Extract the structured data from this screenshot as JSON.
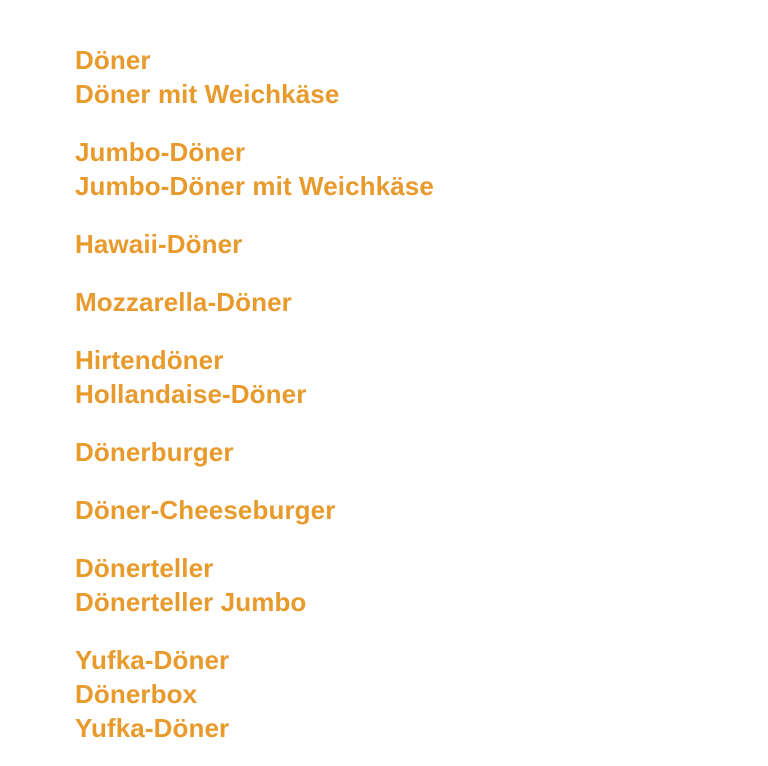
{
  "accent_color": "#e89a2c",
  "menu": {
    "groups": [
      {
        "items": [
          "Döner",
          "Döner mit Weichkäse"
        ]
      },
      {
        "items": [
          "Jumbo-Döner",
          "Jumbo-Döner mit Weichkäse"
        ]
      },
      {
        "items": [
          "Hawaii-Döner"
        ]
      },
      {
        "items": [
          "Mozzarella-Döner"
        ]
      },
      {
        "items": [
          "Hirtendöner",
          "Hollandaise-Döner"
        ]
      },
      {
        "items": [
          "Dönerburger"
        ]
      },
      {
        "items": [
          "Döner-Cheeseburger"
        ]
      },
      {
        "items": [
          "Dönerteller",
          "Dönerteller Jumbo"
        ]
      },
      {
        "items": [
          "Yufka-Döner",
          "Dönerbox",
          "Yufka-Döner"
        ]
      }
    ]
  }
}
